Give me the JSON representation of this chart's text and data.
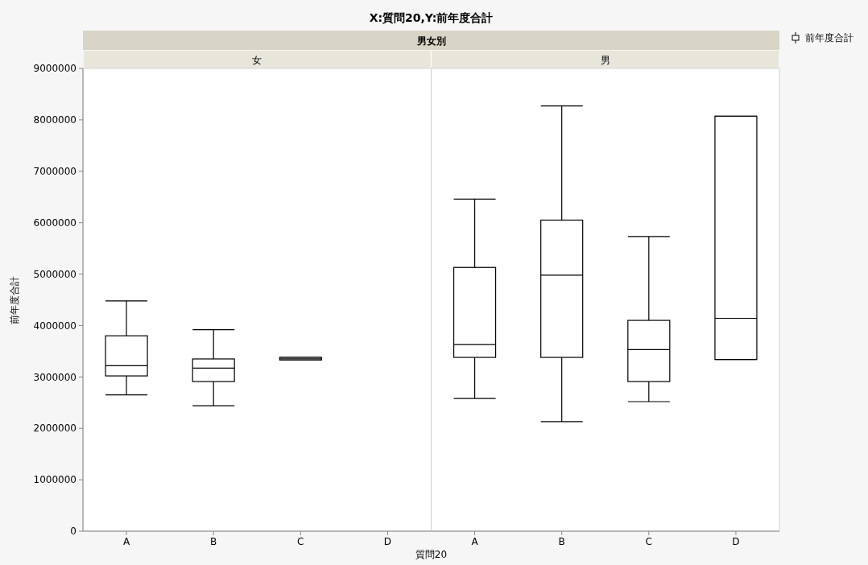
{
  "chart_data": [
    {
      "type": "box",
      "title": "X:質問20,Y:前年度合計",
      "annotations": [
        "男女別"
      ],
      "subtitle": "女",
      "xlabel": "質問20",
      "ylabel": "前年度合計",
      "categories": [
        "A",
        "B",
        "C",
        "D"
      ],
      "ylim": [
        0,
        9000000
      ],
      "yticks": [
        0,
        1000000,
        2000000,
        3000000,
        4000000,
        5000000,
        6000000,
        7000000,
        8000000,
        9000000
      ],
      "legend": "right",
      "series": [
        {
          "name": "前年度合計",
          "color": "#000000",
          "boxes": [
            {
              "low": 2650000,
              "q1": 3020000,
              "median": 3220000,
              "q3": 3800000,
              "high": 4480000
            },
            {
              "low": 2440000,
              "q1": 2910000,
              "median": 3170000,
              "q3": 3350000,
              "high": 3920000
            },
            {
              "low": 3330000,
              "q1": 3330000,
              "median": 3350000,
              "q3": 3380000,
              "high": 3380000
            },
            null
          ]
        }
      ]
    },
    {
      "type": "box",
      "subtitle": "男",
      "categories": [
        "A",
        "B",
        "C",
        "D"
      ],
      "ylim": [
        0,
        9000000
      ],
      "yticks": [
        0,
        1000000,
        2000000,
        3000000,
        4000000,
        5000000,
        6000000,
        7000000,
        8000000,
        9000000
      ],
      "tick_labels": "x",
      "series": [
        {
          "color": "#000000",
          "boxes": [
            {
              "low": 2580000,
              "q1": 3380000,
              "median": 3630000,
              "q3": 5130000,
              "high": 6460000
            },
            {
              "low": 2130000,
              "q1": 3380000,
              "median": 4980000,
              "q3": 6050000,
              "high": 8270000
            },
            {
              "low": 2520000,
              "q1": 2910000,
              "median": 3530000,
              "q3": 4100000,
              "high": 5730000
            },
            {
              "low": 3340000,
              "q1": 3340000,
              "median": 4140000,
              "q3": 8070000,
              "high": 8070000
            }
          ]
        }
      ]
    }
  ]
}
